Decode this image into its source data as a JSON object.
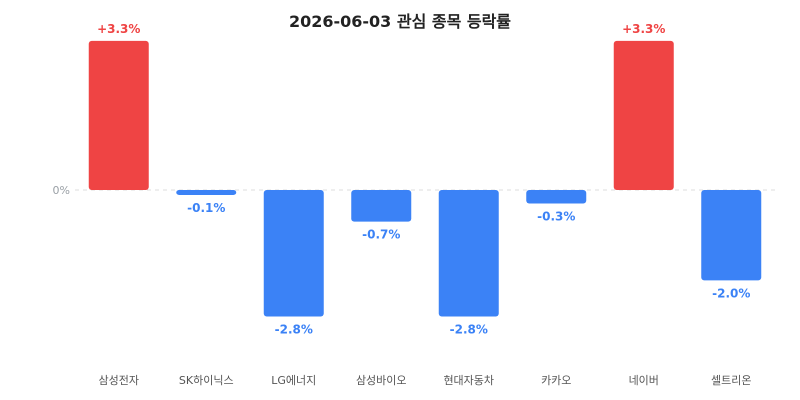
{
  "chart_data": {
    "type": "bar",
    "title": "2026-06-03 관심 종목 등락률",
    "categories": [
      "삼성전자",
      "SK하이닉스",
      "LG에너지",
      "삼성바이오",
      "현대자동차",
      "카카오",
      "네이버",
      "셀트리온"
    ],
    "values": [
      3.3,
      -0.1,
      -2.8,
      -0.7,
      -2.8,
      -0.3,
      3.3,
      -2.0
    ],
    "value_labels": [
      "+3.3%",
      "-0.1%",
      "-2.8%",
      "-0.7%",
      "-2.8%",
      "-0.3%",
      "+3.3%",
      "-2.0%"
    ],
    "zero_label": "0%",
    "ylim": [
      -3.9,
      3.3
    ],
    "grid": false,
    "legend": "none",
    "colors": {
      "positive": "#ef4444",
      "negative": "#3b82f6",
      "zero_line": "#dddddd"
    }
  }
}
